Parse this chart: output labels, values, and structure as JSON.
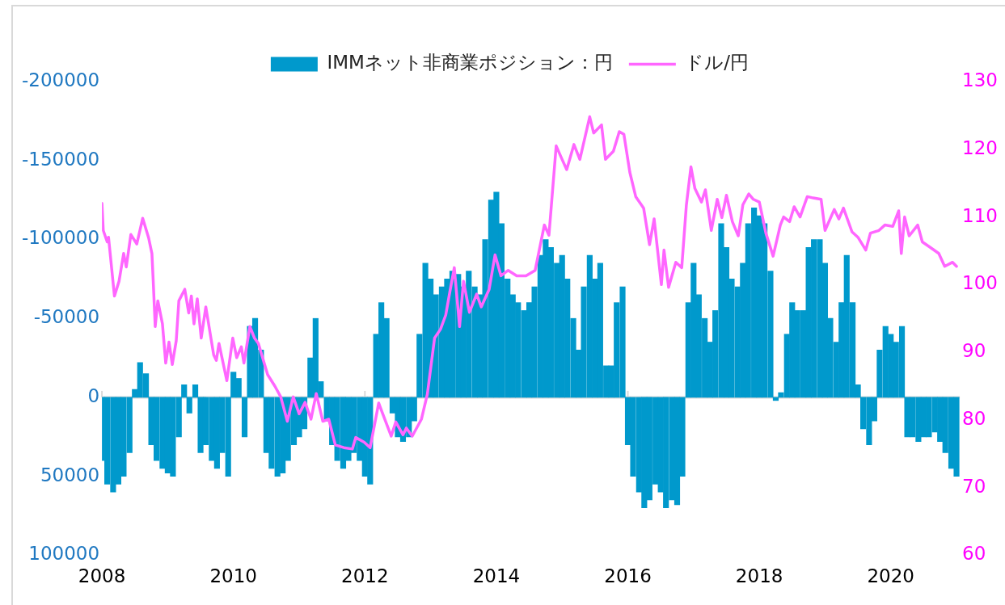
{
  "chart_data": {
    "type": "bar",
    "legend": "top",
    "xlim": [
      2008,
      2021.05
    ],
    "xticks": [
      2008,
      2010,
      2012,
      2014,
      2016,
      2018,
      2020
    ],
    "ylim": [
      100000,
      -200000
    ],
    "yticks": [
      -200000,
      -150000,
      -100000,
      -50000,
      0,
      50000,
      100000
    ],
    "y2lim": [
      60,
      130
    ],
    "y2ticks": [
      60,
      70,
      80,
      90,
      100,
      110,
      120,
      130
    ],
    "series": [
      {
        "name": "IMMネット非商業ポジション：円",
        "color": "#0099cc",
        "x": [
          2008.0,
          2008.08,
          2008.17,
          2008.25,
          2008.33,
          2008.42,
          2008.5,
          2008.58,
          2008.67,
          2008.75,
          2008.83,
          2008.92,
          2009.0,
          2009.08,
          2009.17,
          2009.25,
          2009.33,
          2009.42,
          2009.5,
          2009.58,
          2009.67,
          2009.75,
          2009.83,
          2009.92,
          2010.0,
          2010.08,
          2010.17,
          2010.25,
          2010.33,
          2010.42,
          2010.5,
          2010.58,
          2010.67,
          2010.75,
          2010.83,
          2010.92,
          2011.0,
          2011.08,
          2011.17,
          2011.25,
          2011.33,
          2011.42,
          2011.5,
          2011.58,
          2011.67,
          2011.75,
          2011.83,
          2011.92,
          2012.0,
          2012.08,
          2012.17,
          2012.25,
          2012.33,
          2012.42,
          2012.5,
          2012.58,
          2012.67,
          2012.75,
          2012.83,
          2012.92,
          2013.0,
          2013.08,
          2013.17,
          2013.25,
          2013.33,
          2013.42,
          2013.5,
          2013.58,
          2013.67,
          2013.75,
          2013.83,
          2013.92,
          2014.0,
          2014.08,
          2014.17,
          2014.25,
          2014.33,
          2014.42,
          2014.5,
          2014.58,
          2014.67,
          2014.75,
          2014.83,
          2014.92,
          2015.0,
          2015.08,
          2015.17,
          2015.25,
          2015.33,
          2015.42,
          2015.5,
          2015.58,
          2015.67,
          2015.75,
          2015.83,
          2015.92,
          2016.0,
          2016.08,
          2016.17,
          2016.25,
          2016.33,
          2016.42,
          2016.5,
          2016.58,
          2016.67,
          2016.75,
          2016.83,
          2016.92,
          2017.0,
          2017.08,
          2017.17,
          2017.25,
          2017.33,
          2017.42,
          2017.5,
          2017.58,
          2017.67,
          2017.75,
          2017.83,
          2017.92,
          2018.0,
          2018.08,
          2018.17,
          2018.25,
          2018.33,
          2018.42,
          2018.5,
          2018.58,
          2018.67,
          2018.75,
          2018.83,
          2018.92,
          2019.0,
          2019.08,
          2019.17,
          2019.25,
          2019.33,
          2019.42,
          2019.5,
          2019.58,
          2019.67,
          2019.75,
          2019.83,
          2019.92,
          2020.0,
          2020.08,
          2020.17,
          2020.25,
          2020.33,
          2020.42,
          2020.5,
          2020.58,
          2020.67,
          2020.75,
          2020.83,
          2020.92,
          2021.0
        ],
        "values": [
          40000,
          55000,
          60000,
          55000,
          50000,
          35000,
          -5000,
          -22000,
          -15000,
          30000,
          40000,
          45000,
          48000,
          50000,
          25000,
          -8000,
          10000,
          -8000,
          35000,
          30000,
          40000,
          45000,
          35000,
          50000,
          -16000,
          -12000,
          25000,
          -45000,
          -50000,
          -30000,
          35000,
          45000,
          50000,
          48000,
          40000,
          30000,
          25000,
          20000,
          -25000,
          -50000,
          -10000,
          15000,
          30000,
          40000,
          45000,
          40000,
          35000,
          40000,
          50000,
          55000,
          -40000,
          -60000,
          -50000,
          10000,
          25000,
          28000,
          25000,
          15000,
          -40000,
          -85000,
          -75000,
          -65000,
          -70000,
          -75000,
          -80000,
          -78000,
          -70000,
          -80000,
          -70000,
          -65000,
          -100000,
          -125000,
          -130000,
          -110000,
          -75000,
          -65000,
          -60000,
          -55000,
          -60000,
          -70000,
          -90000,
          -100000,
          -95000,
          -85000,
          -90000,
          -75000,
          -50000,
          -30000,
          -70000,
          -90000,
          -75000,
          -85000,
          -20000,
          -20000,
          -60000,
          -70000,
          30000,
          50000,
          60000,
          70000,
          65000,
          55000,
          60000,
          70000,
          65000,
          68000,
          50000,
          -60000,
          -85000,
          -65000,
          -50000,
          -35000,
          -55000,
          -110000,
          -95000,
          -75000,
          -70000,
          -85000,
          -110000,
          -120000,
          -115000,
          -110000,
          -80000,
          2000,
          -3000,
          -40000,
          -60000,
          -55000,
          -55000,
          -95000,
          -100000,
          -100000,
          -85000,
          -50000,
          -35000,
          -60000,
          -90000,
          -60000,
          -8000,
          20000,
          30000,
          15000,
          -30000,
          -45000,
          -40000,
          -35000,
          -45000,
          25000,
          25000,
          28000,
          25000,
          25000,
          22000,
          28000,
          35000,
          45000,
          50000
        ]
      },
      {
        "name": "ドル/円",
        "type": "line",
        "axis": "y2",
        "color": "#ff66ff",
        "x": [
          2008.0,
          2008.02,
          2008.08,
          2008.1,
          2008.19,
          2008.26,
          2008.33,
          2008.37,
          2008.44,
          2008.53,
          2008.62,
          2008.71,
          2008.76,
          2008.78,
          2008.81,
          2008.85,
          2008.92,
          2008.97,
          2009.02,
          2009.07,
          2009.13,
          2009.17,
          2009.26,
          2009.32,
          2009.36,
          2009.4,
          2009.45,
          2009.51,
          2009.58,
          2009.7,
          2009.74,
          2009.78,
          2009.9,
          2009.99,
          2010.05,
          2010.12,
          2010.16,
          2010.25,
          2010.32,
          2010.38,
          2010.52,
          2010.63,
          2010.72,
          2010.82,
          2010.91,
          2011.0,
          2011.09,
          2011.18,
          2011.26,
          2011.36,
          2011.45,
          2011.55,
          2011.68,
          2011.81,
          2011.86,
          2011.99,
          2012.08,
          2012.21,
          2012.26,
          2012.4,
          2012.47,
          2012.58,
          2012.63,
          2012.72,
          2012.86,
          2012.95,
          2013.06,
          2013.15,
          2013.23,
          2013.29,
          2013.36,
          2013.44,
          2013.5,
          2013.59,
          2013.7,
          2013.77,
          2013.89,
          2013.98,
          2014.07,
          2014.18,
          2014.31,
          2014.45,
          2014.59,
          2014.73,
          2014.8,
          2014.91,
          2015.0,
          2015.07,
          2015.18,
          2015.27,
          2015.42,
          2015.48,
          2015.6,
          2015.66,
          2015.78,
          2015.87,
          2015.94,
          2016.03,
          2016.12,
          2016.24,
          2016.33,
          2016.4,
          2016.51,
          2016.55,
          2016.62,
          2016.73,
          2016.82,
          2016.89,
          2016.96,
          2017.02,
          2017.12,
          2017.18,
          2017.27,
          2017.36,
          2017.43,
          2017.5,
          2017.59,
          2017.68,
          2017.75,
          2017.84,
          2017.91,
          2018.0,
          2018.1,
          2018.21,
          2018.32,
          2018.37,
          2018.46,
          2018.53,
          2018.62,
          2018.73,
          2018.82,
          2018.94,
          2019.0,
          2019.14,
          2019.21,
          2019.28,
          2019.41,
          2019.5,
          2019.62,
          2019.69,
          2019.82,
          2019.91,
          2020.03,
          2020.12,
          2020.16,
          2020.21,
          2020.28,
          2020.41,
          2020.48,
          2020.6,
          2020.73,
          2020.82,
          2020.94,
          2021.0
        ],
        "values": [
          112,
          108,
          106.3,
          107,
          98.3,
          100.5,
          104.6,
          102.6,
          107.4,
          106,
          109.8,
          106.9,
          104.6,
          100.5,
          93.8,
          97.6,
          94.2,
          88.4,
          91.5,
          88.2,
          91.7,
          97.6,
          99.3,
          95.8,
          98.3,
          94.2,
          97.9,
          92.1,
          96.7,
          89.6,
          88.8,
          91.3,
          85.8,
          92.1,
          89.2,
          90.8,
          88.4,
          93.8,
          92.1,
          91.3,
          86.7,
          85,
          83.4,
          79.8,
          83.4,
          80.9,
          82.6,
          80.1,
          83.9,
          79.8,
          80.1,
          76.3,
          75.9,
          75.7,
          77.4,
          76.7,
          75.9,
          82.5,
          81.2,
          77.6,
          79.7,
          77.8,
          78.8,
          77.6,
          80.1,
          83.8,
          92.1,
          93.4,
          95.5,
          98.8,
          102.5,
          93.8,
          100.5,
          95.9,
          98.6,
          96.7,
          99.3,
          104.4,
          101.3,
          102.1,
          101.3,
          101.3,
          102.1,
          108.8,
          107.3,
          120.5,
          118.5,
          117,
          120.7,
          118.5,
          124.8,
          122.4,
          123.6,
          118.5,
          119.7,
          122.6,
          122.2,
          116.6,
          113,
          111.3,
          105.9,
          109.7,
          100,
          105.1,
          99.6,
          103.3,
          102.5,
          111.7,
          117.4,
          114.2,
          112.2,
          114,
          108,
          112.6,
          109.9,
          113.2,
          109.3,
          107.2,
          111.8,
          113.4,
          112.6,
          112.2,
          107.6,
          104.2,
          108.8,
          110,
          109.3,
          111.5,
          110,
          113,
          112.8,
          112.6,
          108,
          111.1,
          109.7,
          111.3,
          107.8,
          107,
          105.1,
          107.6,
          108,
          108.8,
          108.6,
          110.9,
          104.6,
          110,
          107.2,
          108.8,
          106.3,
          105.5,
          104.6,
          102.7,
          103.3,
          102.7
        ]
      }
    ]
  }
}
